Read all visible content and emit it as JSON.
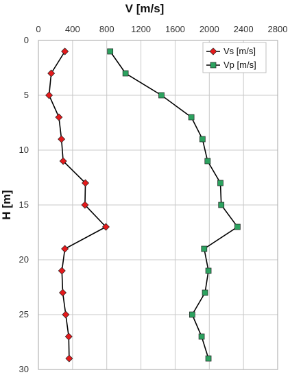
{
  "chart_data": {
    "type": "scatter",
    "title": "",
    "xlabel": "V [m/s]",
    "ylabel": "H [m]",
    "x_axis_position": "top",
    "y_axis_inverted": true,
    "xlim": [
      0,
      2800
    ],
    "ylim": [
      0,
      30
    ],
    "x_ticks": [
      0,
      400,
      800,
      1200,
      1600,
      2000,
      2400,
      2800
    ],
    "y_ticks": [
      0,
      5,
      10,
      15,
      20,
      25,
      30
    ],
    "grid": true,
    "legend_position": "top-right",
    "series": [
      {
        "name": "Vs [m/s]",
        "marker": "diamond",
        "color": "#e41a1c",
        "points": [
          {
            "v": 310,
            "h": 1
          },
          {
            "v": 150,
            "h": 3
          },
          {
            "v": 125,
            "h": 5
          },
          {
            "v": 240,
            "h": 7
          },
          {
            "v": 270,
            "h": 9
          },
          {
            "v": 290,
            "h": 11
          },
          {
            "v": 550,
            "h": 13
          },
          {
            "v": 545,
            "h": 15
          },
          {
            "v": 790,
            "h": 17
          },
          {
            "v": 310,
            "h": 19
          },
          {
            "v": 275,
            "h": 21
          },
          {
            "v": 285,
            "h": 23
          },
          {
            "v": 320,
            "h": 25
          },
          {
            "v": 355,
            "h": 27
          },
          {
            "v": 360,
            "h": 29
          }
        ]
      },
      {
        "name": "Vp [m/s]",
        "marker": "square",
        "color": "#2ca25f",
        "points": [
          {
            "v": 840,
            "h": 1
          },
          {
            "v": 1020,
            "h": 3
          },
          {
            "v": 1440,
            "h": 5
          },
          {
            "v": 1790,
            "h": 7
          },
          {
            "v": 1920,
            "h": 9
          },
          {
            "v": 1980,
            "h": 11
          },
          {
            "v": 2130,
            "h": 13
          },
          {
            "v": 2140,
            "h": 15
          },
          {
            "v": 2330,
            "h": 17
          },
          {
            "v": 1940,
            "h": 19
          },
          {
            "v": 1990,
            "h": 21
          },
          {
            "v": 1950,
            "h": 23
          },
          {
            "v": 1800,
            "h": 25
          },
          {
            "v": 1910,
            "h": 27
          },
          {
            "v": 1990,
            "h": 29
          }
        ]
      }
    ]
  }
}
